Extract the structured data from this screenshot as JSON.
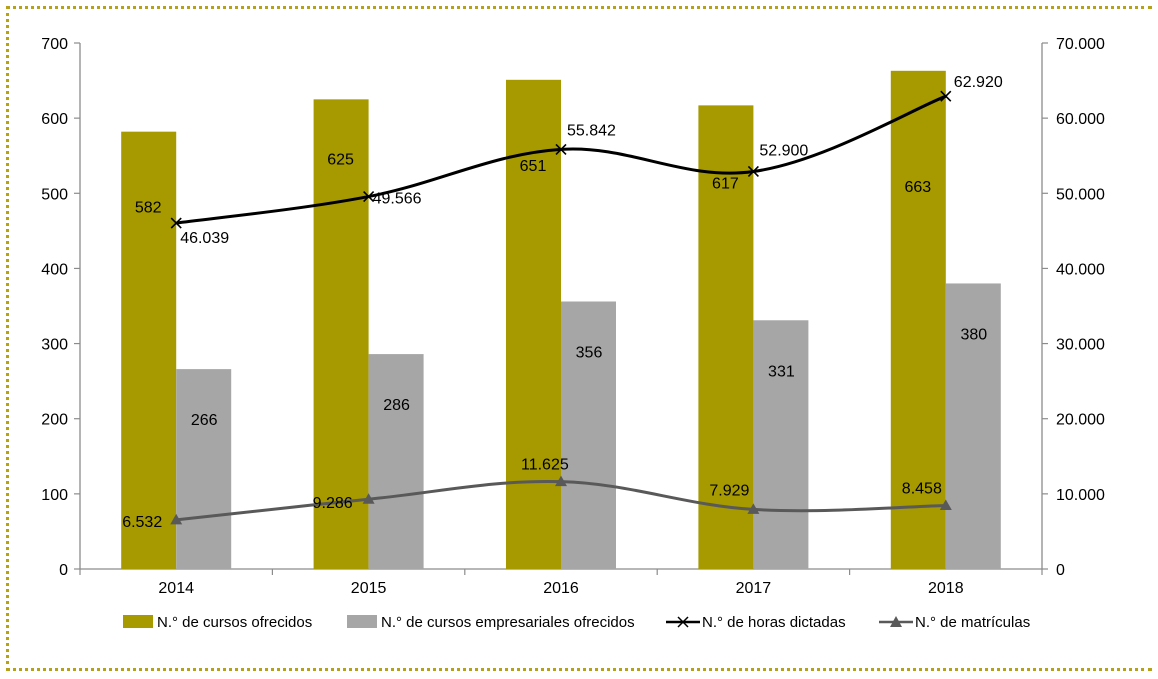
{
  "colors": {
    "bar_primary": "#a69a00",
    "bar_secondary": "#a6a6a6",
    "line_hours": "#000000",
    "line_enrollments": "#595959",
    "frame_dots": "#b5a21a"
  },
  "chart_data": {
    "type": "bar",
    "categories": [
      "2014",
      "2015",
      "2016",
      "2017",
      "2018"
    ],
    "y_left": {
      "min": 0,
      "max": 700,
      "ticks": [
        "0",
        "100",
        "200",
        "300",
        "400",
        "500",
        "600",
        "700"
      ]
    },
    "y_right": {
      "min": 0,
      "max": 70000,
      "ticks": [
        "0",
        "10.000",
        "20.000",
        "30.000",
        "40.000",
        "50.000",
        "60.000",
        "70.000"
      ]
    },
    "grid": false,
    "legend_position": "bottom",
    "series": [
      {
        "name": "N.° de cursos ofrecidos",
        "kind": "bar",
        "axis": "left",
        "values": [
          582,
          625,
          651,
          617,
          663
        ],
        "labels": [
          "582",
          "625",
          "651",
          "617",
          "663"
        ]
      },
      {
        "name": "N.° de cursos empresariales ofrecidos",
        "kind": "bar",
        "axis": "left",
        "values": [
          266,
          286,
          356,
          331,
          380
        ],
        "labels": [
          "266",
          "286",
          "356",
          "331",
          "380"
        ]
      },
      {
        "name": "N.° de horas dictadas",
        "kind": "line",
        "marker": "x",
        "axis": "right",
        "values": [
          46039,
          49566,
          55842,
          52900,
          62920
        ],
        "labels": [
          "46.039",
          "49.566",
          "55.842",
          "52.900",
          "62.920"
        ]
      },
      {
        "name": "N.° de matrículas",
        "kind": "line",
        "marker": "triangle",
        "axis": "right",
        "values": [
          6532,
          9286,
          11625,
          7929,
          8458
        ],
        "labels": [
          "6.532",
          "9.286",
          "11.625",
          "7.929",
          "8.458"
        ]
      }
    ]
  }
}
